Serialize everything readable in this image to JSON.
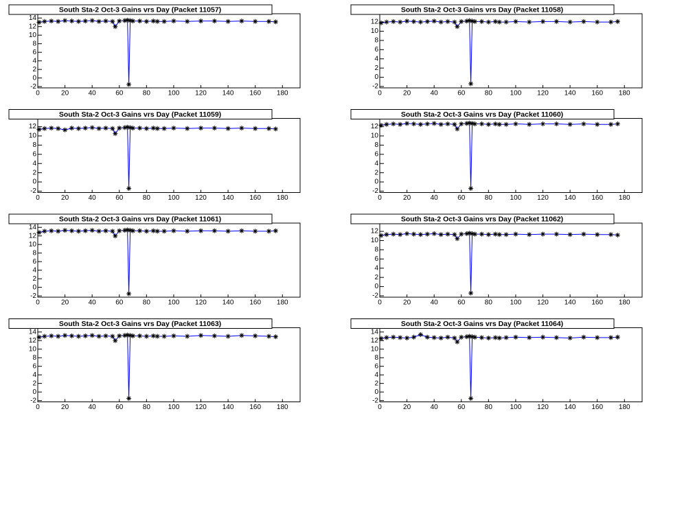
{
  "chart_data": [
    {
      "type": "line",
      "title": "South Sta-2 Oct-3 Gains vrs Day (Packet 11057)",
      "color": "#0000ff",
      "marker_color": "#000000",
      "x": [
        1,
        5,
        10,
        15,
        20,
        25,
        30,
        35,
        40,
        45,
        50,
        55,
        57,
        60,
        64,
        66,
        67,
        68,
        70,
        75,
        80,
        85,
        88,
        93,
        100,
        110,
        120,
        130,
        140,
        150,
        160,
        170,
        175
      ],
      "values": [
        13,
        13.2,
        13.3,
        13.2,
        13.4,
        13.3,
        13.2,
        13.3,
        13.4,
        13.2,
        13.3,
        13.2,
        12,
        13.3,
        13.4,
        13.5,
        -1.5,
        13.4,
        13.3,
        13.3,
        13.2,
        13.3,
        13.2,
        13.2,
        13.3,
        13.2,
        13.3,
        13.3,
        13.2,
        13.3,
        13.2,
        13.2,
        13.1
      ],
      "xlim": [
        0,
        193
      ],
      "ylim": [
        -2.3,
        15
      ],
      "xticks": [
        0,
        20,
        40,
        60,
        80,
        100,
        120,
        140,
        160,
        180
      ],
      "yticks": [
        -2,
        0,
        2,
        4,
        6,
        8,
        10,
        12,
        14
      ]
    },
    {
      "type": "line",
      "title": "South Sta-2 Oct-3 Gains vrs Day (Packet 11058)",
      "color": "#0000ff",
      "marker_color": "#000000",
      "x": [
        1,
        5,
        10,
        15,
        20,
        25,
        30,
        35,
        40,
        45,
        50,
        55,
        57,
        60,
        64,
        66,
        67,
        68,
        70,
        75,
        80,
        85,
        88,
        93,
        100,
        110,
        120,
        130,
        140,
        150,
        160,
        170,
        175
      ],
      "values": [
        11.8,
        12,
        12.1,
        12,
        12.2,
        12.1,
        12,
        12.1,
        12.2,
        12,
        12.1,
        12,
        11,
        12.1,
        12.2,
        12.3,
        -1.4,
        12.2,
        12.1,
        12.1,
        12,
        12.1,
        12,
        12,
        12.1,
        12,
        12.1,
        12.1,
        12,
        12.1,
        12,
        12,
        12.1
      ],
      "xlim": [
        0,
        193
      ],
      "ylim": [
        -2.3,
        13.8
      ],
      "xticks": [
        0,
        20,
        40,
        60,
        80,
        100,
        120,
        140,
        160,
        180
      ],
      "yticks": [
        -2,
        0,
        2,
        4,
        6,
        8,
        10,
        12
      ]
    },
    {
      "type": "line",
      "title": "South Sta-2 Oct-3 Gains vrs Day (Packet 11059)",
      "color": "#0000ff",
      "marker_color": "#000000",
      "x": [
        1,
        5,
        10,
        15,
        20,
        25,
        30,
        35,
        40,
        45,
        50,
        55,
        57,
        60,
        64,
        66,
        67,
        68,
        70,
        75,
        80,
        85,
        88,
        93,
        100,
        110,
        120,
        130,
        140,
        150,
        160,
        170,
        175
      ],
      "values": [
        11.4,
        11.6,
        11.7,
        11.6,
        11.3,
        11.7,
        11.6,
        11.7,
        11.8,
        11.6,
        11.7,
        11.6,
        10.5,
        11.7,
        11.8,
        11.9,
        -1.4,
        11.8,
        11.7,
        11.7,
        11.6,
        11.7,
        11.6,
        11.6,
        11.7,
        11.6,
        11.7,
        11.7,
        11.6,
        11.7,
        11.6,
        11.6,
        11.5
      ],
      "xlim": [
        0,
        193
      ],
      "ylim": [
        -2.3,
        13.8
      ],
      "xticks": [
        0,
        20,
        40,
        60,
        80,
        100,
        120,
        140,
        160,
        180
      ],
      "yticks": [
        -2,
        0,
        2,
        4,
        6,
        8,
        10,
        12
      ]
    },
    {
      "type": "line",
      "title": "South Sta-2 Oct-3 Gains vrs Day (Packet 11060)",
      "color": "#0000ff",
      "marker_color": "#000000",
      "x": [
        1,
        5,
        10,
        15,
        20,
        25,
        30,
        35,
        40,
        45,
        50,
        55,
        57,
        60,
        64,
        66,
        67,
        68,
        70,
        75,
        80,
        85,
        88,
        93,
        100,
        110,
        120,
        130,
        140,
        150,
        160,
        170,
        175
      ],
      "values": [
        12.3,
        12.5,
        12.6,
        12.5,
        12.7,
        12.6,
        12.5,
        12.6,
        12.7,
        12.5,
        12.6,
        12.5,
        11.5,
        12.6,
        12.7,
        12.8,
        -1.4,
        12.7,
        12.6,
        12.6,
        12.5,
        12.6,
        12.5,
        12.5,
        12.6,
        12.5,
        12.6,
        12.6,
        12.5,
        12.6,
        12.5,
        12.5,
        12.6
      ],
      "xlim": [
        0,
        193
      ],
      "ylim": [
        -2.3,
        13.8
      ],
      "xticks": [
        0,
        20,
        40,
        60,
        80,
        100,
        120,
        140,
        160,
        180
      ],
      "yticks": [
        -2,
        0,
        2,
        4,
        6,
        8,
        10,
        12
      ]
    },
    {
      "type": "line",
      "title": "South Sta-2 Oct-3 Gains vrs Day (Packet 11061)",
      "color": "#0000ff",
      "marker_color": "#000000",
      "x": [
        1,
        5,
        10,
        15,
        20,
        25,
        30,
        35,
        40,
        45,
        50,
        55,
        57,
        60,
        64,
        66,
        67,
        68,
        70,
        75,
        80,
        85,
        88,
        93,
        100,
        110,
        120,
        130,
        140,
        150,
        160,
        170,
        175
      ],
      "values": [
        12.8,
        13.1,
        13.2,
        13.1,
        13.3,
        13.2,
        13.1,
        13.2,
        13.3,
        13.1,
        13.2,
        13.1,
        12,
        13.2,
        13.3,
        13.4,
        -1.5,
        13.3,
        13.2,
        13.2,
        13.1,
        13.2,
        13.1,
        13.1,
        13.2,
        13.1,
        13.2,
        13.2,
        13.1,
        13.2,
        13.1,
        13.1,
        13.2
      ],
      "xlim": [
        0,
        193
      ],
      "ylim": [
        -2.3,
        15
      ],
      "xticks": [
        0,
        20,
        40,
        60,
        80,
        100,
        120,
        140,
        160,
        180
      ],
      "yticks": [
        -2,
        0,
        2,
        4,
        6,
        8,
        10,
        12,
        14
      ]
    },
    {
      "type": "line",
      "title": "South Sta-2 Oct-3 Gains vrs Day (Packet 11062)",
      "color": "#0000ff",
      "marker_color": "#000000",
      "x": [
        1,
        5,
        10,
        15,
        20,
        25,
        30,
        35,
        40,
        45,
        50,
        55,
        57,
        60,
        64,
        66,
        67,
        68,
        70,
        75,
        80,
        85,
        88,
        93,
        100,
        110,
        120,
        130,
        140,
        150,
        160,
        170,
        175
      ],
      "values": [
        11.1,
        11.3,
        11.4,
        11.3,
        11.5,
        11.4,
        11.3,
        11.4,
        11.5,
        11.3,
        11.4,
        11.3,
        10.4,
        11.4,
        11.5,
        11.6,
        -1.4,
        11.5,
        11.4,
        11.4,
        11.3,
        11.4,
        11.3,
        11.3,
        11.4,
        11.3,
        11.4,
        11.4,
        11.3,
        11.4,
        11.3,
        11.3,
        11.2
      ],
      "xlim": [
        0,
        193
      ],
      "ylim": [
        -2.3,
        13.8
      ],
      "xticks": [
        0,
        20,
        40,
        60,
        80,
        100,
        120,
        140,
        160,
        180
      ],
      "yticks": [
        -2,
        0,
        2,
        4,
        6,
        8,
        10,
        12
      ]
    },
    {
      "type": "line",
      "title": "South Sta-2 Oct-3 Gains vrs Day (Packet 11063)",
      "color": "#0000ff",
      "marker_color": "#000000",
      "x": [
        1,
        5,
        10,
        15,
        20,
        25,
        30,
        35,
        40,
        45,
        50,
        55,
        57,
        60,
        64,
        66,
        67,
        68,
        70,
        75,
        80,
        85,
        88,
        93,
        100,
        110,
        120,
        130,
        140,
        150,
        160,
        170,
        175
      ],
      "values": [
        12.8,
        13,
        13.1,
        13,
        13.2,
        13.1,
        13,
        13.1,
        13.2,
        13,
        13.1,
        13,
        12,
        13.1,
        13.2,
        13.3,
        -1.5,
        13.2,
        13.1,
        13.1,
        13,
        13.1,
        13,
        13,
        13.1,
        13,
        13.2,
        13.1,
        13,
        13.2,
        13.1,
        13,
        12.9
      ],
      "xlim": [
        0,
        193
      ],
      "ylim": [
        -2.3,
        15
      ],
      "xticks": [
        0,
        20,
        40,
        60,
        80,
        100,
        120,
        140,
        160,
        180
      ],
      "yticks": [
        -2,
        0,
        2,
        4,
        6,
        8,
        10,
        12,
        14
      ]
    },
    {
      "type": "line",
      "title": "South Sta-2 Oct-3 Gains vrs Day (Packet 11064)",
      "color": "#0000ff",
      "marker_color": "#000000",
      "x": [
        1,
        5,
        10,
        15,
        20,
        25,
        30,
        35,
        40,
        45,
        50,
        55,
        57,
        60,
        64,
        66,
        67,
        68,
        70,
        75,
        80,
        85,
        88,
        93,
        100,
        110,
        120,
        130,
        140,
        150,
        160,
        170,
        175
      ],
      "values": [
        12.5,
        12.7,
        12.8,
        12.7,
        12.6,
        12.8,
        13.4,
        12.8,
        12.7,
        12.6,
        12.8,
        12.6,
        11.7,
        12.8,
        12.9,
        13,
        -1.5,
        12.9,
        12.8,
        12.7,
        12.6,
        12.7,
        12.6,
        12.7,
        12.8,
        12.7,
        12.8,
        12.7,
        12.6,
        12.8,
        12.7,
        12.7,
        12.8
      ],
      "xlim": [
        0,
        193
      ],
      "ylim": [
        -2.3,
        15
      ],
      "xticks": [
        0,
        20,
        40,
        60,
        80,
        100,
        120,
        140,
        160,
        180
      ],
      "yticks": [
        -2,
        0,
        2,
        4,
        6,
        8,
        10,
        12,
        14
      ]
    }
  ]
}
